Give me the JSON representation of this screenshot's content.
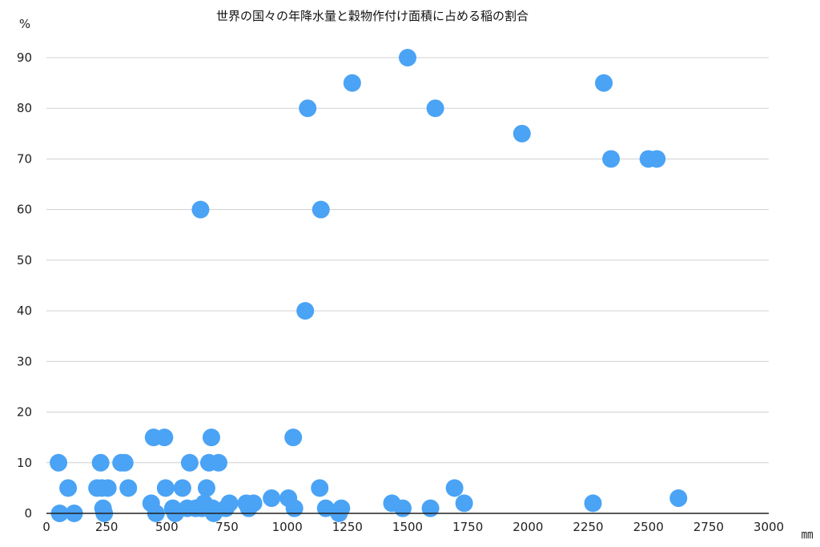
{
  "chart_data": {
    "type": "scatter",
    "title": "世界の国々の年降水量と穀物作付け面積に占める稲の割合",
    "ylabel": "%",
    "xlabel": "㎜",
    "xlim": [
      0,
      3000
    ],
    "ylim": [
      0,
      90
    ],
    "x_ticks": [
      "0",
      "250",
      "500",
      "750",
      "1000",
      "1250",
      "1500",
      "1750",
      "2000",
      "2250",
      "2500",
      "2750",
      "3000"
    ],
    "y_ticks": [
      "0",
      "10",
      "20",
      "30",
      "40",
      "50",
      "60",
      "70",
      "80",
      "90"
    ],
    "grid": true,
    "legend": "none",
    "point_color": "#4aa3f5",
    "points": [
      {
        "x": 50,
        "y": 10
      },
      {
        "x": 55,
        "y": 0
      },
      {
        "x": 90,
        "y": 5
      },
      {
        "x": 115,
        "y": 0
      },
      {
        "x": 210,
        "y": 5
      },
      {
        "x": 225,
        "y": 10
      },
      {
        "x": 230,
        "y": 5
      },
      {
        "x": 235,
        "y": 1
      },
      {
        "x": 240,
        "y": 0
      },
      {
        "x": 255,
        "y": 5
      },
      {
        "x": 310,
        "y": 10
      },
      {
        "x": 325,
        "y": 10
      },
      {
        "x": 340,
        "y": 5
      },
      {
        "x": 435,
        "y": 2
      },
      {
        "x": 445,
        "y": 15
      },
      {
        "x": 455,
        "y": 0
      },
      {
        "x": 490,
        "y": 15
      },
      {
        "x": 495,
        "y": 5
      },
      {
        "x": 525,
        "y": 1
      },
      {
        "x": 535,
        "y": 0
      },
      {
        "x": 565,
        "y": 5
      },
      {
        "x": 585,
        "y": 1
      },
      {
        "x": 595,
        "y": 10
      },
      {
        "x": 620,
        "y": 1
      },
      {
        "x": 640,
        "y": 60
      },
      {
        "x": 645,
        "y": 1
      },
      {
        "x": 655,
        "y": 2
      },
      {
        "x": 665,
        "y": 5
      },
      {
        "x": 675,
        "y": 10
      },
      {
        "x": 685,
        "y": 15
      },
      {
        "x": 690,
        "y": 1
      },
      {
        "x": 695,
        "y": 0
      },
      {
        "x": 715,
        "y": 10
      },
      {
        "x": 745,
        "y": 1
      },
      {
        "x": 760,
        "y": 2
      },
      {
        "x": 830,
        "y": 2
      },
      {
        "x": 840,
        "y": 1
      },
      {
        "x": 860,
        "y": 2
      },
      {
        "x": 935,
        "y": 3
      },
      {
        "x": 1005,
        "y": 3
      },
      {
        "x": 1025,
        "y": 15
      },
      {
        "x": 1030,
        "y": 1
      },
      {
        "x": 1075,
        "y": 40
      },
      {
        "x": 1085,
        "y": 80
      },
      {
        "x": 1135,
        "y": 5
      },
      {
        "x": 1140,
        "y": 60
      },
      {
        "x": 1160,
        "y": 1
      },
      {
        "x": 1215,
        "y": 0
      },
      {
        "x": 1225,
        "y": 1
      },
      {
        "x": 1270,
        "y": 85
      },
      {
        "x": 1435,
        "y": 2
      },
      {
        "x": 1480,
        "y": 1
      },
      {
        "x": 1500,
        "y": 90
      },
      {
        "x": 1595,
        "y": 1
      },
      {
        "x": 1615,
        "y": 80
      },
      {
        "x": 1695,
        "y": 5
      },
      {
        "x": 1735,
        "y": 2
      },
      {
        "x": 1975,
        "y": 75
      },
      {
        "x": 2270,
        "y": 2
      },
      {
        "x": 2315,
        "y": 85
      },
      {
        "x": 2345,
        "y": 70
      },
      {
        "x": 2500,
        "y": 70
      },
      {
        "x": 2535,
        "y": 70
      },
      {
        "x": 2625,
        "y": 3
      }
    ]
  }
}
